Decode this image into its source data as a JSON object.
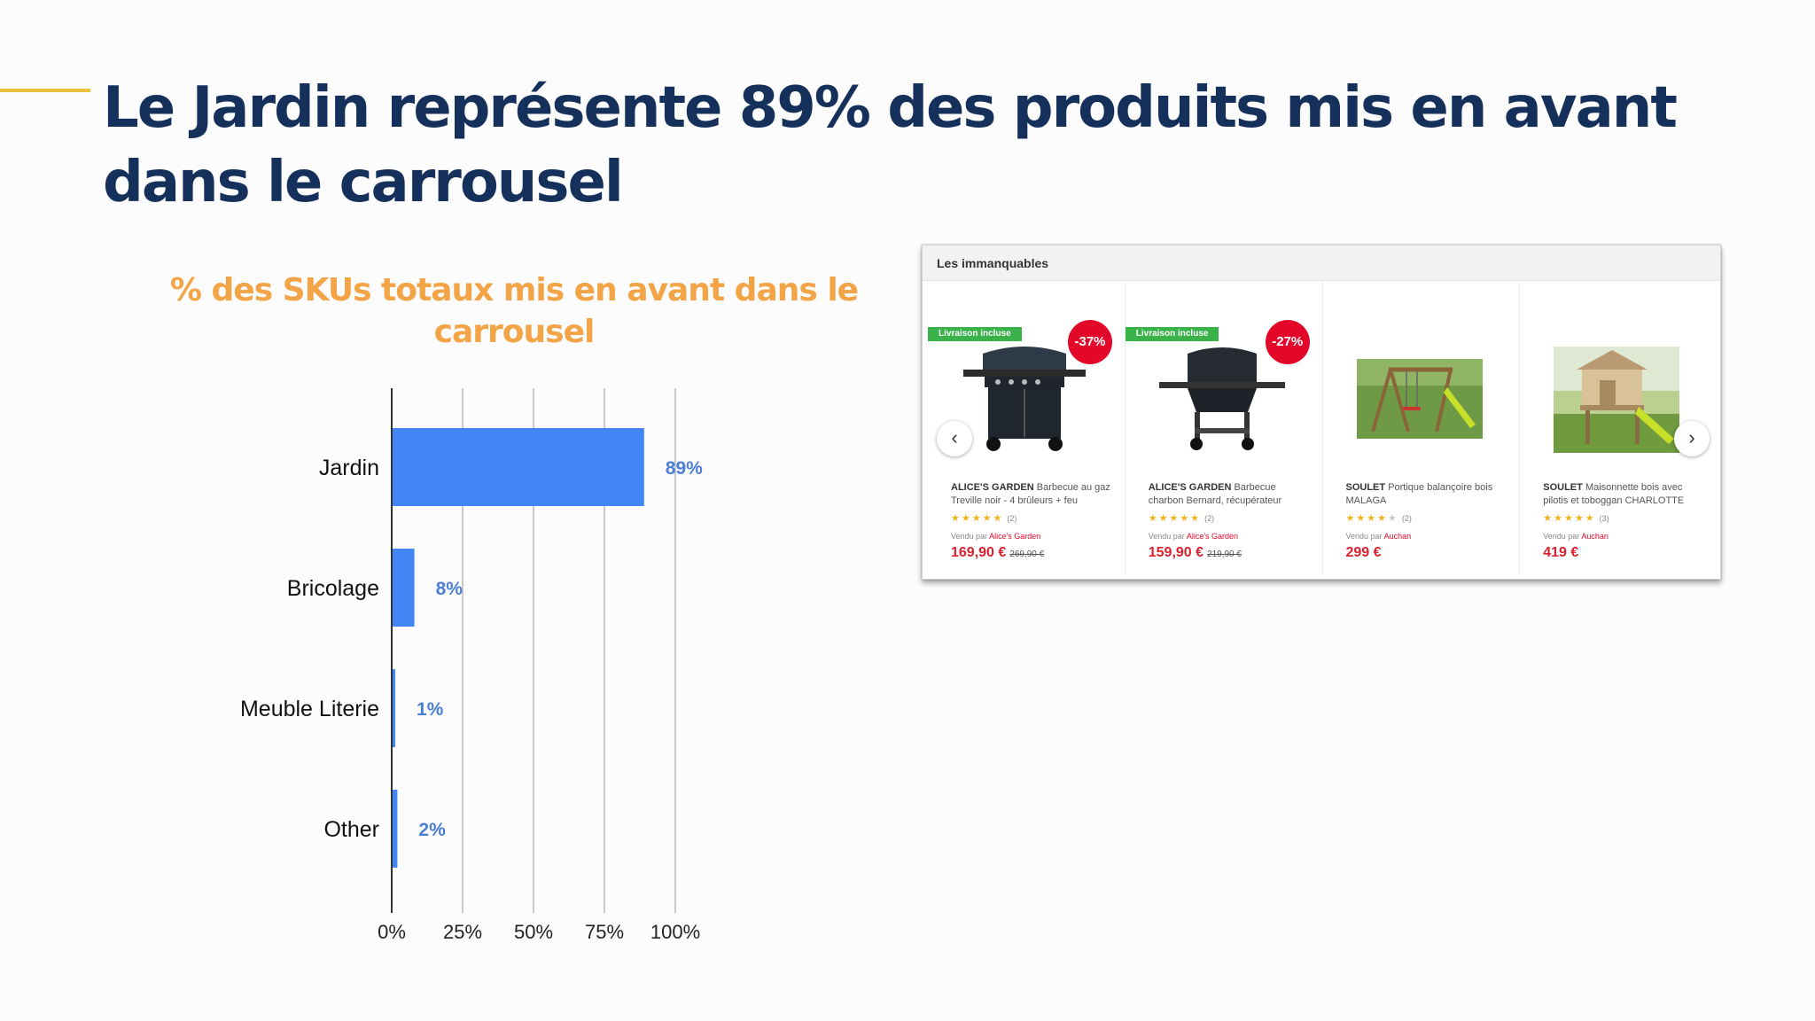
{
  "slide": {
    "title": "Le Jardin représente 89% des produits mis en avant dans le carrousel"
  },
  "colors": {
    "title": "#16305c",
    "accent": "#f0c23c",
    "chart_title": "#f3a446",
    "bar": "#4285f4",
    "data_label": "#4a7fd6"
  },
  "chart_data": {
    "type": "bar",
    "orientation": "horizontal",
    "title": "% des SKUs totaux mis en avant dans le carrousel",
    "categories": [
      "Jardin",
      "Bricolage",
      "Meuble Literie",
      "Other"
    ],
    "values": [
      89,
      8,
      1,
      2
    ],
    "data_labels": [
      "89%",
      "8%",
      "1%",
      "2%"
    ],
    "xlim": [
      0,
      100
    ],
    "xticks": [
      0,
      25,
      50,
      75,
      100
    ],
    "xtick_labels": [
      "0%",
      "25%",
      "50%",
      "75%",
      "100%"
    ],
    "grid": "vertical",
    "legend": "none"
  },
  "carousel": {
    "heading": "Les immanquables",
    "prev_icon": "chevron-left-icon",
    "next_icon": "chevron-right-icon",
    "products": [
      {
        "delivery_badge": "Livraison incluse",
        "discount": "-37%",
        "brand": "ALICE'S GARDEN",
        "name": "Barbecue au gaz Treville noir - 4 brûleurs + feu",
        "stars": "★★★★★",
        "rating": 5,
        "reviews": "(2)",
        "seller_prefix": "Vendu par",
        "seller": "Alice's Garden",
        "price": "169,90 €",
        "old_price": "269,90 €",
        "image": "gas-bbq"
      },
      {
        "delivery_badge": "Livraison incluse",
        "discount": "-27%",
        "brand": "ALICE'S GARDEN",
        "name": "Barbecue charbon Bernard, récupérateur",
        "stars": "★★★★★",
        "rating": 4.5,
        "reviews": "(2)",
        "seller_prefix": "Vendu par",
        "seller": "Alice's Garden",
        "price": "159,90 €",
        "old_price": "219,90 €",
        "image": "charcoal-bbq"
      },
      {
        "delivery_badge": "",
        "discount": "",
        "brand": "SOULET",
        "name": "Portique balançoire bois MALAGA",
        "stars": "★★★★★",
        "rating": 4,
        "reviews": "(2)",
        "seller_prefix": "Vendu par",
        "seller": "Auchan",
        "price": "299 €",
        "old_price": "",
        "image": "swing-set"
      },
      {
        "delivery_badge": "",
        "discount": "",
        "brand": "SOULET",
        "name": "Maisonnette bois avec pilotis et toboggan CHARLOTTE",
        "stars": "★★★★★",
        "rating": 5,
        "reviews": "(3)",
        "seller_prefix": "Vendu par",
        "seller": "Auchan",
        "price": "419 €",
        "old_price": "",
        "image": "play-house"
      }
    ]
  }
}
